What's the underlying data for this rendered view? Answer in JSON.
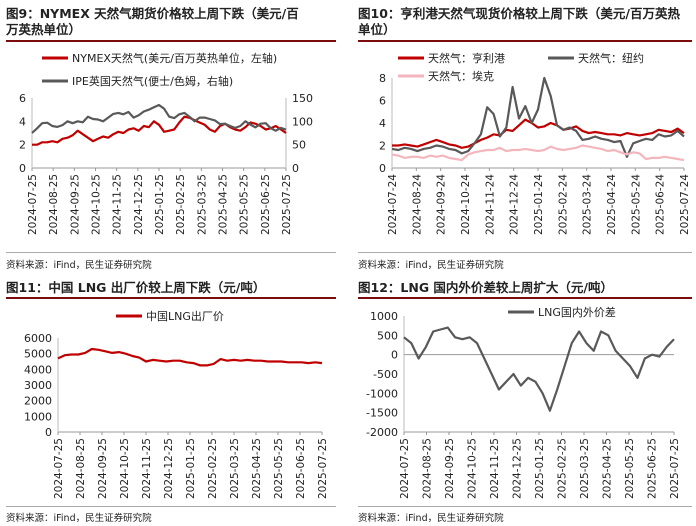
{
  "charts": [
    {
      "title": "图9：NYMEX 天然气期货价格较上周下跌（美元/百万英热单位）",
      "source": "资料来源：iFind，民生证券研究院",
      "chart_data": {
        "type": "line",
        "x_ticks": [
          "2024-07-25",
          "2024-08-25",
          "2024-09-25",
          "2024-10-25",
          "2024-11-25",
          "2024-12-25",
          "2025-01-25",
          "2025-02-25",
          "2025-03-25",
          "2025-04-25",
          "2025-05-25",
          "2025-06-25",
          "2025-07-25"
        ],
        "y_left": {
          "ylim": [
            0,
            6
          ],
          "ticks": [
            0,
            2,
            4,
            6
          ]
        },
        "y_right": {
          "ylim": [
            0,
            150
          ],
          "ticks": [
            0,
            50,
            100,
            150
          ]
        },
        "series": [
          {
            "name": "NYMEX天然气(美元/百万英热单位，左轴)",
            "color": "#c00000",
            "axis": "left",
            "values": [
              2.0,
              2.0,
              2.2,
              2.2,
              2.3,
              2.2,
              2.5,
              2.6,
              2.8,
              3.2,
              2.9,
              2.6,
              2.3,
              2.5,
              2.7,
              2.6,
              2.9,
              3.1,
              3.0,
              3.3,
              3.4,
              3.2,
              3.6,
              3.5,
              4.0,
              3.7,
              3.1,
              3.2,
              3.3,
              3.9,
              4.4,
              4.3,
              4.1,
              3.9,
              3.7,
              3.3,
              3.1,
              3.6,
              3.8,
              3.5,
              3.3,
              3.2,
              3.5,
              3.9,
              3.8,
              3.6,
              3.3,
              3.4,
              3.6,
              3.3,
              3.0
            ]
          },
          {
            "name": "IPE英国天然气(便士/色姆，右轴)",
            "color": "#595959",
            "axis": "right",
            "values": [
              75,
              85,
              96,
              97,
              90,
              88,
              92,
              100,
              96,
              100,
              98,
              110,
              105,
              104,
              100,
              108,
              116,
              118,
              115,
              120,
              108,
              113,
              121,
              125,
              130,
              135,
              127,
              110,
              107,
              115,
              118,
              110,
              100,
              108,
              108,
              105,
              102,
              94,
              95,
              90,
              86,
              90,
              100,
              93,
              87,
              95,
              96,
              85,
              80,
              86,
              82
            ]
          }
        ]
      }
    },
    {
      "title": "图10：亨利港天然气现货价格较上周下跌（美元/百万英热单位）",
      "source": "资料来源：iFind，民生证券研究院",
      "chart_data": {
        "type": "line",
        "x_ticks": [
          "2024-07-24",
          "2024-08-24",
          "2024-09-24",
          "2024-10-24",
          "2024-11-24",
          "2024-12-24",
          "2025-01-24",
          "2025-02-24",
          "2025-03-24",
          "2025-04-24",
          "2025-05-24",
          "2025-06-24",
          "2025-07-24"
        ],
        "ylim": [
          0,
          8
        ],
        "yticks": [
          0,
          2,
          4,
          6,
          8
        ],
        "series": [
          {
            "name": "天然气：亨利港",
            "color": "#c00000",
            "values": [
              2.0,
              2.0,
              2.1,
              2.0,
              1.9,
              2.1,
              2.3,
              2.5,
              2.3,
              2.1,
              2.0,
              1.8,
              1.9,
              2.2,
              2.5,
              2.7,
              3.0,
              2.9,
              3.4,
              3.3,
              3.8,
              4.3,
              4.0,
              3.6,
              3.7,
              4.0,
              3.8,
              3.4,
              3.5,
              3.7,
              3.3,
              3.1,
              3.2,
              3.1,
              3.0,
              3.0,
              2.9,
              3.1,
              3.0,
              2.9,
              3.0,
              3.1,
              3.4,
              3.3,
              3.2,
              3.5,
              3.1
            ]
          },
          {
            "name": "天然气：纽约",
            "color": "#595959",
            "values": [
              1.7,
              1.6,
              1.8,
              1.7,
              1.5,
              1.7,
              1.8,
              2.0,
              1.9,
              1.7,
              1.6,
              1.3,
              1.5,
              2.2,
              3.0,
              5.4,
              4.8,
              2.8,
              3.6,
              7.2,
              4.4,
              5.5,
              4.0,
              5.2,
              8.0,
              6.4,
              3.8,
              3.4,
              3.6,
              3.3,
              2.5,
              2.6,
              2.8,
              2.6,
              2.5,
              2.3,
              2.4,
              1.0,
              2.2,
              2.4,
              2.6,
              2.5,
              3.0,
              2.8,
              2.9,
              3.3,
              2.8
            ]
          },
          {
            "name": "天然气：埃克",
            "color": "#f4b6bd",
            "values": [
              1.2,
              1.1,
              0.9,
              1.0,
              1.0,
              0.9,
              1.1,
              1.0,
              1.1,
              0.9,
              0.8,
              0.7,
              1.2,
              1.4,
              1.5,
              1.6,
              1.6,
              1.8,
              1.5,
              1.6,
              1.6,
              1.7,
              1.6,
              1.5,
              1.6,
              1.9,
              1.7,
              1.6,
              1.7,
              1.8,
              2.0,
              1.9,
              1.8,
              1.7,
              1.5,
              1.6,
              1.4,
              1.2,
              1.4,
              1.3,
              0.8,
              0.9,
              0.9,
              1.0,
              0.9,
              0.8,
              0.7
            ]
          }
        ]
      }
    },
    {
      "title": "图11：中国 LNG 出厂价较上周下跌（元/吨）",
      "source": "资料来源：iFind，民生证券研究院",
      "chart_data": {
        "type": "line",
        "x_ticks": [
          "2024-07-25",
          "2024-08-25",
          "2024-09-25",
          "2024-10-25",
          "2024-11-25",
          "2024-12-25",
          "2025-01-25",
          "2025-02-25",
          "2025-03-25",
          "2025-04-25",
          "2025-05-25",
          "2025-06-25",
          "2025-07-25"
        ],
        "ylim": [
          0,
          6000
        ],
        "yticks": [
          0,
          1000,
          2000,
          3000,
          4000,
          5000,
          6000
        ],
        "series": [
          {
            "name": "中国LNG出厂价",
            "color": "#c00000",
            "values": [
              4700,
              4900,
              4950,
              4950,
              5050,
              5300,
              5250,
              5150,
              5050,
              5100,
              5000,
              4850,
              4750,
              4500,
              4600,
              4550,
              4500,
              4550,
              4550,
              4450,
              4400,
              4250,
              4250,
              4350,
              4650,
              4550,
              4600,
              4550,
              4600,
              4550,
              4550,
              4500,
              4500,
              4500,
              4450,
              4450,
              4450,
              4400,
              4450,
              4400
            ]
          }
        ]
      }
    },
    {
      "title": "图12：LNG 国内外价差较上周扩大（元/吨）",
      "source": "资料来源：iFind，民生证券研究院",
      "chart_data": {
        "type": "line",
        "x_ticks": [
          "2024-07-25",
          "2024-08-25",
          "2024-09-25",
          "2024-10-25",
          "2024-11-25",
          "2024-12-25",
          "2025-01-25",
          "2025-02-25",
          "2025-03-25",
          "2025-04-25",
          "2025-05-25",
          "2025-06-25",
          "2025-07-25"
        ],
        "ylim": [
          -2000,
          1000
        ],
        "yticks": [
          -2000,
          -1500,
          -1000,
          -500,
          0,
          500,
          1000
        ],
        "series": [
          {
            "name": "LNG国内外价差",
            "color": "#595959",
            "values": [
              450,
              300,
              -100,
              200,
              600,
              650,
              700,
              450,
              400,
              450,
              300,
              -100,
              -500,
              -900,
              -700,
              -500,
              -800,
              -600,
              -700,
              -1000,
              -1450,
              -900,
              -300,
              300,
              600,
              300,
              100,
              600,
              500,
              100,
              -100,
              -300,
              -600,
              -100,
              0,
              -50,
              200,
              400
            ]
          }
        ]
      }
    }
  ]
}
